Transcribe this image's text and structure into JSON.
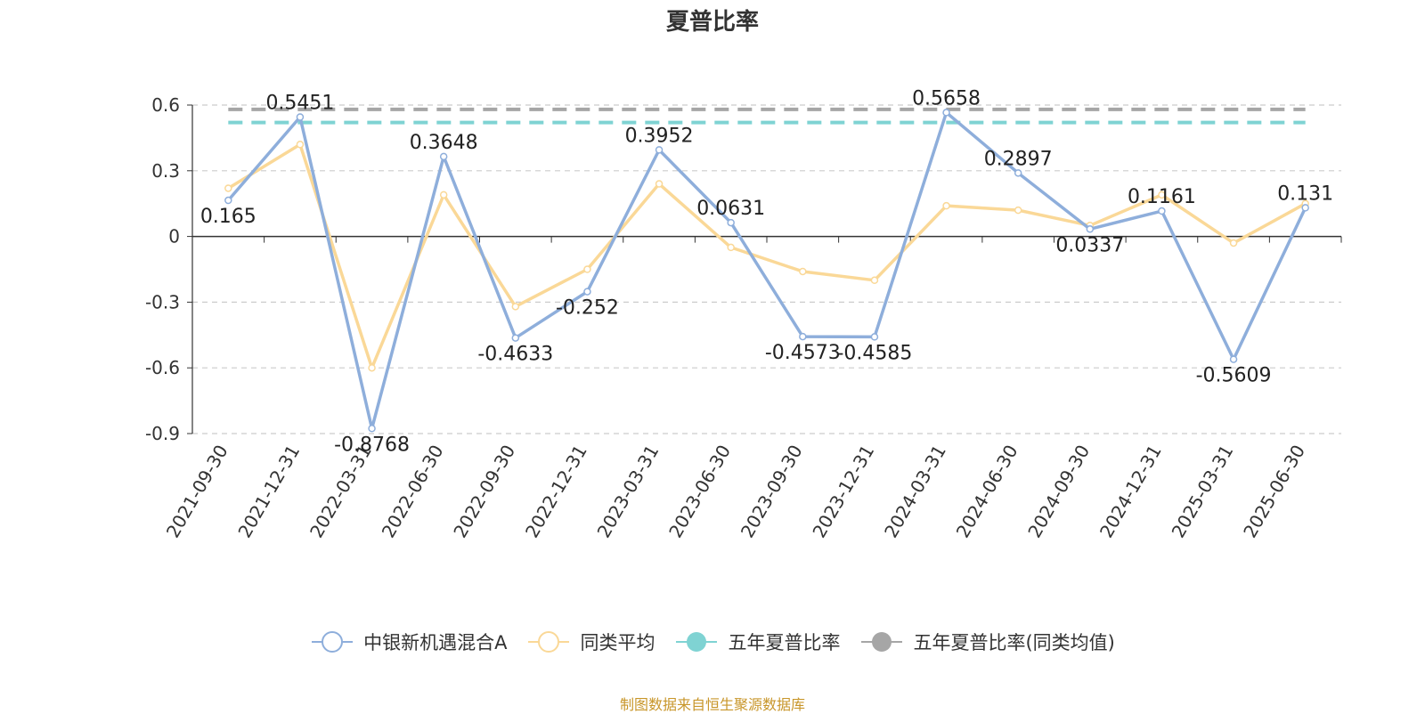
{
  "chart_data": {
    "type": "line",
    "title": "夏普比率",
    "categories": [
      "2021-09-30",
      "2021-12-31",
      "2022-03-31",
      "2022-06-30",
      "2022-09-30",
      "2022-12-31",
      "2023-03-31",
      "2023-06-30",
      "2023-09-30",
      "2023-12-31",
      "2024-03-31",
      "2024-06-30",
      "2024-09-30",
      "2024-12-31",
      "2025-03-31",
      "2025-06-30"
    ],
    "ylim": [
      -0.9,
      0.6
    ],
    "yticks": [
      "0.6",
      "0.3",
      "0",
      "-0.3",
      "-0.6",
      "-0.9"
    ],
    "grid": true,
    "legend_position": "bottom",
    "series": [
      {
        "name": "中银新机遇混合A",
        "color": "#8eaedb",
        "labeled": true,
        "values": [
          0.165,
          0.5451,
          -0.8768,
          0.3648,
          -0.4633,
          -0.252,
          0.3952,
          0.0631,
          -0.4573,
          -0.4585,
          0.5658,
          0.2897,
          0.0337,
          0.1161,
          -0.5609,
          0.131
        ],
        "labels": [
          "0.165",
          "0.5451",
          "-0.8768",
          "0.3648",
          "-0.4633",
          "-0.252",
          "0.3952",
          "0.0631",
          "-0.4573",
          "-0.4585",
          "0.5658",
          "0.2897",
          "0.0337",
          "0.1161",
          "-0.5609",
          "0.131"
        ]
      },
      {
        "name": "同类平均",
        "color": "#fad897",
        "labeled": false,
        "values": [
          0.22,
          0.42,
          -0.6,
          0.19,
          -0.32,
          -0.15,
          0.24,
          -0.05,
          -0.16,
          -0.2,
          0.14,
          0.12,
          0.05,
          0.19,
          -0.03,
          0.15
        ]
      },
      {
        "name": "五年夏普比率",
        "color": "#7fd3d3",
        "type": "hline",
        "value": 0.52
      },
      {
        "name": "五年夏普比率(同类均值)",
        "color": "#a6a6a6",
        "type": "hline",
        "value": 0.58
      }
    ]
  },
  "source_note": "制图数据来自恒生聚源数据库"
}
